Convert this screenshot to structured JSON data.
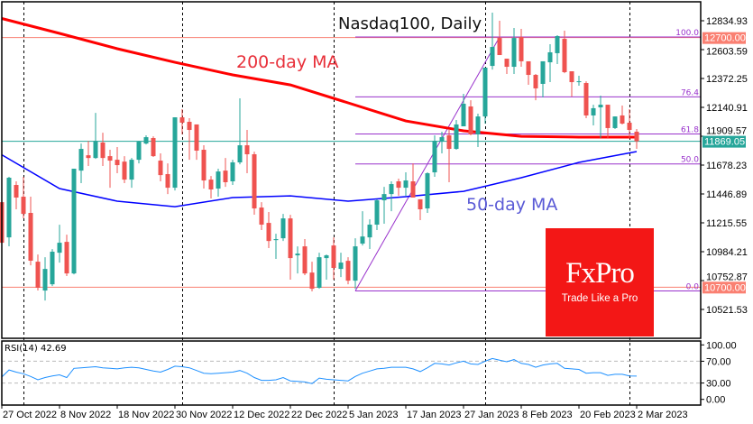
{
  "chart_data": {
    "type": "candlestick",
    "title": "Nasdaq100, Daily",
    "annotations": {
      "ma200_label": "200-day MA",
      "ma50_label": "50-day MA"
    },
    "colors": {
      "up": "#26a69a",
      "down": "#ef5350",
      "ma200": "#ff0000",
      "ma50": "#0000ff",
      "fib": "#9932cc",
      "level": "#fa8072",
      "current": "#26a69a",
      "ma200_text": "#e8303a",
      "ma50_text": "#5a5ad6",
      "rsi": "#1e90ff"
    },
    "ylim": [
      10450,
      13000
    ],
    "y_ticks": [
      "12834.93",
      "12603.59",
      "12372.25",
      "12140.91",
      "11909.57",
      "11678.23",
      "11446.89",
      "11215.55",
      "10984.21",
      "10752.87",
      "10521.53"
    ],
    "x_ticks": [
      "27 Oct 2022",
      "8 Nov 2022",
      "18 Nov 2022",
      "30 Nov 2022",
      "12 Dec 2022",
      "22 Dec 2022",
      "5 Jan 2023",
      "17 Jan 2023",
      "27 Jan 2023",
      "8 Feb 2023",
      "20 Feb 2023",
      "2 Mar 2023"
    ],
    "ohlc": [
      [
        11381,
        11385,
        11050,
        11056
      ],
      [
        11099,
        11584,
        11028,
        11577
      ],
      [
        11519,
        11548,
        11324,
        11418
      ],
      [
        11425,
        11584,
        11252,
        11287
      ],
      [
        11295,
        11425,
        10875,
        10912
      ],
      [
        10904,
        10962,
        10673,
        10695
      ],
      [
        10673,
        10940,
        10593,
        10846
      ],
      [
        10723,
        11005,
        10709,
        10984
      ],
      [
        10976,
        11200,
        10897,
        11056
      ],
      [
        11063,
        11121,
        10789,
        10810
      ],
      [
        10810,
        11649,
        10803,
        11649
      ],
      [
        11634,
        11851,
        11534,
        11808
      ],
      [
        11757,
        11872,
        11671,
        11735
      ],
      [
        11735,
        12097,
        11728,
        11872
      ],
      [
        11859,
        11938,
        11671,
        11735
      ],
      [
        11750,
        11801,
        11497,
        11714
      ],
      [
        11721,
        11823,
        11613,
        11678
      ],
      [
        11706,
        11750,
        11534,
        11562
      ],
      [
        11562,
        11735,
        11497,
        11721
      ],
      [
        11721,
        11873,
        11692,
        11866
      ],
      [
        11851,
        11917,
        11844,
        11902
      ],
      [
        11895,
        11909,
        11743,
        11750
      ],
      [
        11714,
        11772,
        11548,
        11598
      ],
      [
        11606,
        11692,
        11446,
        11497
      ],
      [
        11497,
        12061,
        11475,
        12061
      ],
      [
        12061,
        12126,
        11924,
        12018
      ],
      [
        12025,
        12054,
        11721,
        11960
      ],
      [
        12004,
        12004,
        11721,
        11794
      ],
      [
        11801,
        11837,
        11490,
        11555
      ],
      [
        11562,
        11591,
        11411,
        11483
      ],
      [
        11490,
        11649,
        11425,
        11627
      ],
      [
        11634,
        11735,
        11504,
        11541
      ],
      [
        11548,
        11721,
        11519,
        11700
      ],
      [
        11700,
        12213,
        11685,
        11837
      ],
      [
        11837,
        11960,
        11613,
        11765
      ],
      [
        11765,
        11786,
        11281,
        11331
      ],
      [
        11338,
        11381,
        11158,
        11201
      ],
      [
        11215,
        11302,
        11013,
        11070
      ],
      [
        11077,
        11128,
        10926,
        11085
      ],
      [
        11092,
        11287,
        11070,
        11251
      ],
      [
        11251,
        11280,
        10760,
        10933
      ],
      [
        10955,
        11027,
        10810,
        10969
      ],
      [
        11027,
        11085,
        10796,
        10810
      ],
      [
        10817,
        10904,
        10666,
        10687
      ],
      [
        10695,
        10976,
        10687,
        10940
      ],
      [
        10933,
        10962,
        10760,
        10955
      ],
      [
        11034,
        11099,
        10760,
        10854
      ],
      [
        10846,
        10976,
        10781,
        10897
      ],
      [
        10911,
        10940,
        10723,
        10752
      ],
      [
        10752,
        11092,
        10687,
        11027
      ],
      [
        11049,
        11309,
        11034,
        11106
      ],
      [
        11099,
        11244,
        11006,
        11201
      ],
      [
        11201,
        11404,
        11158,
        11396
      ],
      [
        11396,
        11504,
        11208,
        11446
      ],
      [
        11446,
        11548,
        11309,
        11526
      ],
      [
        11548,
        11570,
        11432,
        11497
      ],
      [
        11497,
        11620,
        11432,
        11555
      ],
      [
        11548,
        11692,
        11418,
        11418
      ],
      [
        11404,
        11404,
        11237,
        11324
      ],
      [
        11331,
        11620,
        11295,
        11613
      ],
      [
        11620,
        11917,
        11584,
        11873
      ],
      [
        11866,
        11946,
        11772,
        11902
      ],
      [
        11917,
        11967,
        11541,
        11808
      ],
      [
        11808,
        12040,
        11801,
        12004
      ],
      [
        11989,
        12249,
        11989,
        12170
      ],
      [
        12148,
        12198,
        11917,
        11924
      ],
      [
        11924,
        12090,
        11823,
        12068
      ],
      [
        12068,
        12459,
        12011,
        12459
      ],
      [
        12473,
        12900,
        12444,
        12625
      ],
      [
        12697,
        12835,
        12560,
        12560
      ],
      [
        12531,
        12531,
        12408,
        12466
      ],
      [
        12466,
        12777,
        12408,
        12697
      ],
      [
        12705,
        12770,
        12466,
        12510
      ],
      [
        12510,
        12510,
        12322,
        12401
      ],
      [
        12401,
        12408,
        12198,
        12293
      ],
      [
        12329,
        12510,
        12220,
        12510
      ],
      [
        12502,
        12647,
        12343,
        12582
      ],
      [
        12575,
        12719,
        12488,
        12712
      ],
      [
        12690,
        12755,
        12415,
        12423
      ],
      [
        12430,
        12430,
        12227,
        12343
      ],
      [
        12343,
        12394,
        12314,
        12350
      ],
      [
        12336,
        12350,
        12054,
        12076
      ],
      [
        12076,
        12162,
        11996,
        12134
      ],
      [
        12141,
        12235,
        11895,
        12162
      ],
      [
        12162,
        12162,
        11895,
        11975
      ],
      [
        11975,
        12068,
        11967,
        12068
      ],
      [
        12076,
        12155,
        12004,
        12011
      ],
      [
        12018,
        12126,
        11895,
        11960
      ],
      [
        11946,
        11967,
        11808,
        11869.05
      ]
    ],
    "ma200_at_ticks": [
      12853,
      12734,
      12611,
      12502,
      12401,
      12321,
      12177,
      12032,
      11953,
      11909,
      11902,
      11902
    ],
    "ma50_at_ticks": [
      11761,
      11490,
      11389,
      11345,
      11418,
      11432,
      11389,
      11425,
      11468,
      11577,
      11700,
      11787
    ],
    "levels": [
      {
        "price": 12700.0,
        "label": "12700.00"
      },
      {
        "price": 10700.0,
        "label": "10700.00"
      }
    ],
    "current_price": {
      "price": 11869.05,
      "label": "11869.05"
    },
    "fibonacci": {
      "low": 10670,
      "high": 12705,
      "levels": [
        {
          "ratio": 1.0,
          "label": "100.0"
        },
        {
          "ratio": 0.764,
          "label": "76.4"
        },
        {
          "ratio": 0.618,
          "label": "61.8"
        },
        {
          "ratio": 0.5,
          "label": "50.0"
        },
        {
          "ratio": 0.0,
          "label": "0.0"
        }
      ]
    },
    "rsi": {
      "label": "RSI(14) 42.69",
      "period": 14,
      "last": 42.69,
      "ylim": [
        0,
        100
      ],
      "y_ticks": [
        "100.00",
        "70.00",
        "30.00",
        "0.00"
      ],
      "levels": [
        70,
        30
      ],
      "values": [
        41,
        54,
        50,
        47,
        42,
        36,
        40,
        43,
        45,
        40,
        57,
        58,
        59,
        60,
        58,
        57,
        56,
        58,
        59,
        58,
        55,
        52,
        50,
        55,
        61,
        60,
        58,
        53,
        48,
        47,
        48,
        49,
        50,
        53,
        48,
        40,
        35,
        35,
        36,
        40,
        34,
        33,
        32,
        29,
        39,
        37,
        36,
        35,
        34,
        42,
        48,
        52,
        56,
        57,
        59,
        59,
        59,
        56,
        51,
        58,
        66,
        65,
        63,
        67,
        70,
        65,
        64,
        70,
        75,
        72,
        69,
        73,
        66,
        64,
        59,
        63,
        65,
        66,
        57,
        56,
        55,
        48,
        49,
        49,
        44,
        46,
        46,
        43,
        42.69
      ]
    }
  },
  "logo": {
    "name": "FxPro",
    "tagline": "Trade Like a Pro"
  }
}
